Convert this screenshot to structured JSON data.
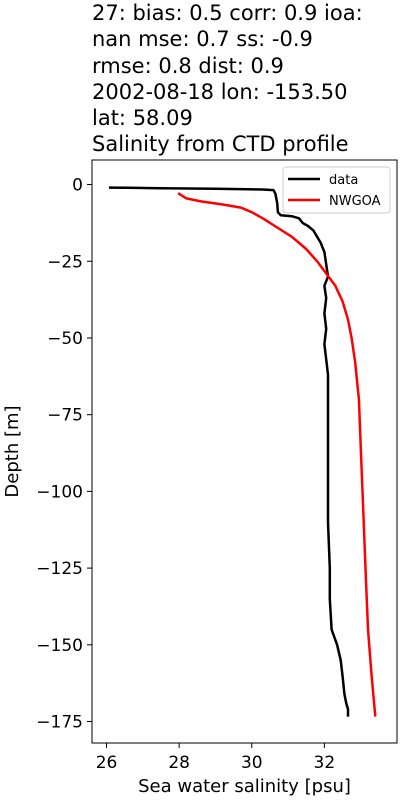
{
  "title_lines": [
    "27: bias: 0.5  corr: 0.9  ioa:",
    "nan  mse: 0.7  ss: -0.9",
    "rmse: 0.8  dist: 0.9",
    "2002-08-18 lon: -153.50",
    "lat: 58.09",
    "Salinity from CTD profile"
  ],
  "chart_data": {
    "type": "line",
    "xlabel": "Sea water salinity [psu]",
    "ylabel": "Depth [m]",
    "xlim": [
      25.6,
      34.0
    ],
    "ylim": [
      -182,
      8
    ],
    "xticks": [
      26,
      28,
      30,
      32
    ],
    "yticks": [
      0,
      -25,
      -50,
      -75,
      -100,
      -125,
      -150,
      -175
    ],
    "grid": false,
    "legend_position": "top-right",
    "series": [
      {
        "name": "data",
        "color": "#000000",
        "points": [
          [
            26.1,
            -1
          ],
          [
            27.5,
            -1.2
          ],
          [
            29.0,
            -1.4
          ],
          [
            30.3,
            -1.6
          ],
          [
            30.6,
            -1.8
          ],
          [
            30.65,
            -3
          ],
          [
            30.7,
            -6
          ],
          [
            30.72,
            -9
          ],
          [
            30.8,
            -10
          ],
          [
            31.1,
            -10.3
          ],
          [
            31.3,
            -11
          ],
          [
            31.4,
            -12.5
          ],
          [
            31.55,
            -13.5
          ],
          [
            31.7,
            -15
          ],
          [
            31.8,
            -17
          ],
          [
            31.9,
            -19
          ],
          [
            32.0,
            -22
          ],
          [
            32.05,
            -26
          ],
          [
            32.1,
            -30
          ],
          [
            32.0,
            -33
          ],
          [
            32.05,
            -37
          ],
          [
            32.0,
            -42
          ],
          [
            32.05,
            -47
          ],
          [
            32.0,
            -52
          ],
          [
            32.05,
            -57
          ],
          [
            32.1,
            -62
          ],
          [
            32.1,
            -70
          ],
          [
            32.1,
            -80
          ],
          [
            32.1,
            -95
          ],
          [
            32.1,
            -110
          ],
          [
            32.15,
            -125
          ],
          [
            32.15,
            -135
          ],
          [
            32.2,
            -145
          ],
          [
            32.35,
            -150
          ],
          [
            32.45,
            -155
          ],
          [
            32.5,
            -160
          ],
          [
            32.55,
            -166
          ],
          [
            32.6,
            -169
          ],
          [
            32.65,
            -171
          ],
          [
            32.65,
            -173
          ]
        ]
      },
      {
        "name": "NWGOA",
        "color": "#ff0000",
        "points": [
          [
            28.0,
            -3
          ],
          [
            28.2,
            -4.5
          ],
          [
            28.6,
            -5.5
          ],
          [
            29.2,
            -6.5
          ],
          [
            29.7,
            -7.5
          ],
          [
            30.0,
            -9
          ],
          [
            30.3,
            -11
          ],
          [
            30.7,
            -14
          ],
          [
            31.1,
            -17
          ],
          [
            31.5,
            -21
          ],
          [
            31.8,
            -25
          ],
          [
            32.05,
            -29
          ],
          [
            32.3,
            -33
          ],
          [
            32.5,
            -38
          ],
          [
            32.65,
            -44
          ],
          [
            32.75,
            -50
          ],
          [
            32.85,
            -58
          ],
          [
            32.95,
            -70
          ],
          [
            33.0,
            -85
          ],
          [
            33.05,
            -100
          ],
          [
            33.1,
            -115
          ],
          [
            33.15,
            -130
          ],
          [
            33.2,
            -145
          ],
          [
            33.3,
            -160
          ],
          [
            33.4,
            -173
          ]
        ]
      }
    ]
  }
}
